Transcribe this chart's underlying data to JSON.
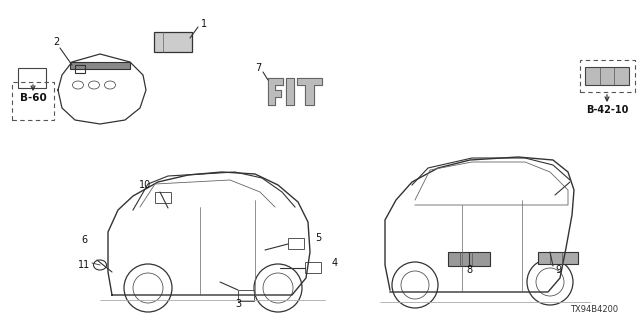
{
  "bg_color": "#ffffff",
  "fig_code": "TX94B4200",
  "ref_b60": "B-60",
  "ref_b42": "B-42-10"
}
